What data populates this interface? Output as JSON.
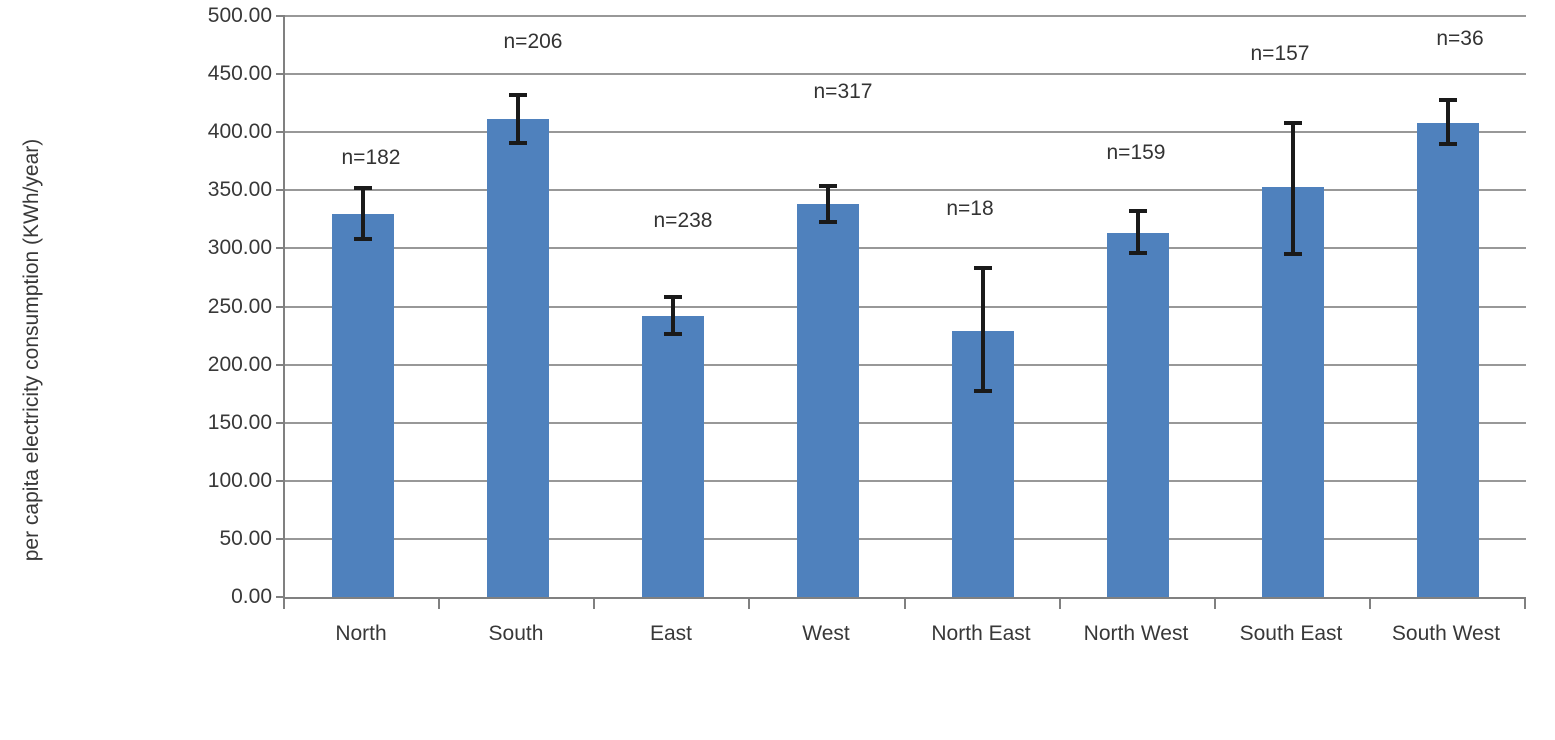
{
  "chart_data": {
    "type": "bar",
    "title": "",
    "xlabel": "",
    "ylabel": "per capita electricity consumption (KWh/year)",
    "ylim": [
      0,
      500
    ],
    "ytick_step": 50,
    "ytick_labels": [
      "500.00",
      "450.00",
      "400.00",
      "350.00",
      "300.00",
      "250.00",
      "200.00",
      "150.00",
      "100.00",
      "50.00",
      "0.00"
    ],
    "grid": true,
    "legend": false,
    "categories": [
      "North",
      "South",
      "East",
      "West",
      "North East",
      "North West",
      "South East",
      "South West"
    ],
    "series": [
      {
        "name": "per capita electricity consumption (KWh/year)",
        "values": [
          330,
          411,
          242,
          338,
          229,
          313,
          353,
          408
        ],
        "error_low": [
          308,
          391,
          226,
          323,
          177,
          296,
          295,
          390
        ],
        "error_high": [
          352,
          432,
          258,
          354,
          283,
          332,
          408,
          428
        ]
      }
    ],
    "annotations": [
      {
        "label": "n=182",
        "category": "North",
        "y": 378,
        "dx": 10
      },
      {
        "label": "n=206",
        "category": "South",
        "y": 478,
        "dx": 17
      },
      {
        "label": "n=238",
        "category": "East",
        "y": 324,
        "dx": 12
      },
      {
        "label": "n=317",
        "category": "West",
        "y": 435,
        "dx": 17
      },
      {
        "label": "n=18",
        "category": "North East",
        "y": 334,
        "dx": -11
      },
      {
        "label": "n=159",
        "category": "North West",
        "y": 382,
        "dx": 0
      },
      {
        "label": "n=157",
        "category": "South East",
        "y": 467,
        "dx": -11
      },
      {
        "label": "n=36",
        "category": "South West",
        "y": 480,
        "dx": 14
      }
    ],
    "colors": {
      "bar": "#4F81BD",
      "gridline": "#989898",
      "axis": "#808080",
      "error_bar": "#1a1a1a",
      "text": "#383838"
    }
  }
}
